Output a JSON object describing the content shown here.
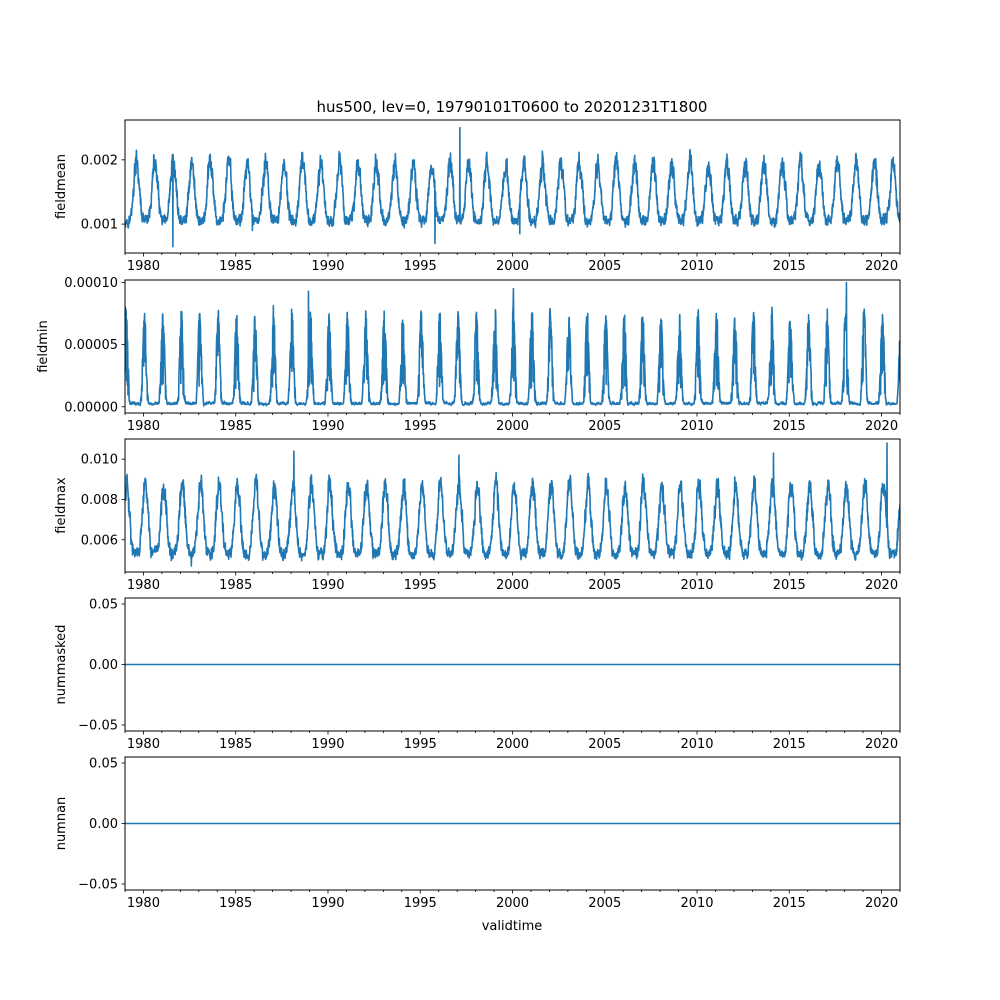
{
  "chart_data": {
    "type": "line",
    "title": "hus500, lev=0, 19790101T0600 to 20201231T1800",
    "xlabel": "validtime",
    "x_range": [
      "1979-01-01T06:00",
      "2020-12-31T18:00"
    ],
    "xlim": [
      1979.0,
      2021.0
    ],
    "x_ticks": [
      "1980",
      "1985",
      "1990",
      "1995",
      "2000",
      "2005",
      "2010",
      "2015",
      "2020"
    ],
    "line_color": "#1f77b4",
    "grid": false,
    "panels": [
      {
        "ylabel": "fieldmean",
        "ylim": [
          0.00055,
          0.00262
        ],
        "y_ticks": [
          0.001,
          0.002
        ],
        "y_tick_labels": [
          "0.001",
          "0.002"
        ],
        "series": {
          "kind": "seasonal-noisy",
          "baseline_min": 0.00105,
          "seasonal_peak": 0.00195,
          "peak_phase": 0.62,
          "noise": 0.00018,
          "extremes": [
            [
              1981.6,
              0.00065
            ],
            [
              1997.15,
              0.0025
            ],
            [
              1995.8,
              0.0007
            ],
            [
              2000.4,
              0.00085
            ],
            [
              1985.9,
              0.0009
            ]
          ]
        }
      },
      {
        "ylabel": "fieldmin",
        "ylim": [
          -5e-06,
          0.000102
        ],
        "y_ticks": [
          0.0,
          5e-05,
          0.0001
        ],
        "y_tick_labels": [
          "0.00000",
          "0.00005",
          "0.00010"
        ],
        "series": {
          "kind": "seasonal-spiky",
          "baseline_min": 2e-06,
          "seasonal_peak": 7e-05,
          "peak_phase": 0.05,
          "noise": 1.5e-05,
          "extremes": [
            [
              2018.1,
              0.0001
            ],
            [
              2000.05,
              9.5e-05
            ],
            [
              1988.95,
              9.3e-05
            ],
            [
              1979.02,
              8e-05
            ]
          ]
        }
      },
      {
        "ylabel": "fieldmax",
        "ylim": [
          0.0044,
          0.011
        ],
        "y_ticks": [
          0.006,
          0.008,
          0.01
        ],
        "y_tick_labels": [
          "0.006",
          "0.008",
          "0.010"
        ],
        "series": {
          "kind": "seasonal-noisy",
          "baseline_min": 0.0053,
          "seasonal_peak": 0.0087,
          "peak_phase": 0.1,
          "noise": 0.0006,
          "extremes": [
            [
              2020.3,
              0.0108
            ],
            [
              1988.15,
              0.0104
            ],
            [
              1997.1,
              0.0102
            ],
            [
              2014.15,
              0.0103
            ],
            [
              1982.6,
              0.0047
            ]
          ]
        }
      },
      {
        "ylabel": "nummasked",
        "ylim": [
          -0.055,
          0.055
        ],
        "y_ticks": [
          -0.05,
          0.0,
          0.05
        ],
        "y_tick_labels": [
          "−0.05",
          "0.00",
          "0.05"
        ],
        "series": {
          "kind": "constant",
          "value": 0.0
        }
      },
      {
        "ylabel": "numnan",
        "ylim": [
          -0.055,
          0.055
        ],
        "y_ticks": [
          -0.05,
          0.0,
          0.05
        ],
        "y_tick_labels": [
          "−0.05",
          "0.00",
          "0.05"
        ],
        "series": {
          "kind": "constant",
          "value": 0.0
        }
      }
    ]
  }
}
